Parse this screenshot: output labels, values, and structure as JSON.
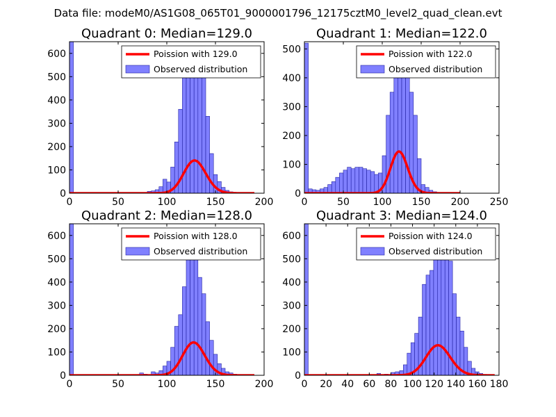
{
  "figure": {
    "title": "Data file: modeM0/AS1G08_065T01_9000001796_12175cztM0_level2_quad_clean.evt"
  },
  "colors": {
    "bar_fill": "#8080ff",
    "bar_edge": "#2020a0",
    "curve": "#ff0000",
    "axes": "#000000"
  },
  "chart_data": [
    {
      "type": "bar",
      "title": "Quadrant 0: Median=129.0",
      "xlabel": "",
      "ylabel": "",
      "xlim": [
        0,
        200
      ],
      "ylim": [
        0,
        650
      ],
      "xticks": [
        0,
        50,
        100,
        150,
        200
      ],
      "yticks": [
        0,
        100,
        200,
        300,
        400,
        500,
        600
      ],
      "legend": {
        "location": "top-right",
        "entries": [
          "Poission with 129.0",
          "Observed distribution"
        ]
      },
      "hist": {
        "bin_width": 4,
        "bins": [
          [
            0,
            650
          ],
          [
            76,
            3
          ],
          [
            80,
            8
          ],
          [
            84,
            10
          ],
          [
            88,
            15
          ],
          [
            92,
            28
          ],
          [
            96,
            60
          ],
          [
            100,
            48
          ],
          [
            104,
            112
          ],
          [
            108,
            220
          ],
          [
            112,
            360
          ],
          [
            116,
            520
          ],
          [
            120,
            500
          ],
          [
            124,
            580
          ],
          [
            128,
            580
          ],
          [
            132,
            540
          ],
          [
            136,
            530
          ],
          [
            140,
            330
          ],
          [
            144,
            170
          ],
          [
            148,
            80
          ],
          [
            152,
            50
          ],
          [
            156,
            25
          ],
          [
            160,
            12
          ],
          [
            164,
            6
          ],
          [
            168,
            3
          ]
        ]
      },
      "poisson": {
        "lambda": 129.0,
        "scale": 4000,
        "x_range": [
          0,
          190
        ]
      }
    },
    {
      "type": "bar",
      "title": "Quadrant 1: Median=122.0",
      "xlabel": "",
      "ylabel": "",
      "xlim": [
        0,
        250
      ],
      "ylim": [
        0,
        525
      ],
      "xticks": [
        0,
        50,
        100,
        150,
        200,
        250
      ],
      "yticks": [
        0,
        100,
        200,
        300,
        400,
        500
      ],
      "legend": {
        "location": "top-right",
        "entries": [
          "Poission with 122.0",
          "Observed distribution"
        ]
      },
      "hist": {
        "bin_width": 5,
        "bins": [
          [
            0,
            520
          ],
          [
            5,
            15
          ],
          [
            10,
            12
          ],
          [
            15,
            10
          ],
          [
            20,
            15
          ],
          [
            25,
            20
          ],
          [
            30,
            30
          ],
          [
            35,
            40
          ],
          [
            40,
            55
          ],
          [
            45,
            70
          ],
          [
            50,
            80
          ],
          [
            55,
            90
          ],
          [
            60,
            85
          ],
          [
            65,
            90
          ],
          [
            70,
            90
          ],
          [
            75,
            85
          ],
          [
            80,
            80
          ],
          [
            85,
            75
          ],
          [
            90,
            65
          ],
          [
            95,
            70
          ],
          [
            100,
            130
          ],
          [
            105,
            270
          ],
          [
            110,
            350
          ],
          [
            115,
            510
          ],
          [
            120,
            510
          ],
          [
            125,
            415
          ],
          [
            130,
            465
          ],
          [
            135,
            350
          ],
          [
            140,
            270
          ],
          [
            145,
            120
          ],
          [
            150,
            30
          ],
          [
            155,
            20
          ],
          [
            160,
            10
          ],
          [
            165,
            5
          ]
        ]
      },
      "poisson": {
        "lambda": 122.0,
        "scale": 4000,
        "x_range": [
          0,
          200
        ]
      }
    },
    {
      "type": "bar",
      "title": "Quadrant 2: Median=128.0",
      "xlabel": "",
      "ylabel": "",
      "xlim": [
        0,
        200
      ],
      "ylim": [
        0,
        650
      ],
      "xticks": [
        0,
        50,
        100,
        150,
        200
      ],
      "yticks": [
        0,
        100,
        200,
        300,
        400,
        500,
        600
      ],
      "legend": {
        "location": "top-right",
        "entries": [
          "Poission with 128.0",
          "Observed distribution"
        ]
      },
      "hist": {
        "bin_width": 4,
        "bins": [
          [
            0,
            650
          ],
          [
            72,
            10
          ],
          [
            76,
            5
          ],
          [
            84,
            15
          ],
          [
            88,
            10
          ],
          [
            92,
            20
          ],
          [
            96,
            40
          ],
          [
            100,
            60
          ],
          [
            104,
            120
          ],
          [
            108,
            210
          ],
          [
            112,
            260
          ],
          [
            116,
            380
          ],
          [
            120,
            510
          ],
          [
            124,
            580
          ],
          [
            128,
            520
          ],
          [
            132,
            420
          ],
          [
            136,
            350
          ],
          [
            140,
            230
          ],
          [
            144,
            150
          ],
          [
            148,
            90
          ],
          [
            152,
            50
          ],
          [
            156,
            30
          ],
          [
            160,
            15
          ],
          [
            164,
            10
          ],
          [
            168,
            5
          ]
        ]
      },
      "poisson": {
        "lambda": 128.0,
        "scale": 4000,
        "x_range": [
          0,
          190
        ]
      }
    },
    {
      "type": "bar",
      "title": "Quadrant 3: Median=124.0",
      "xlabel": "",
      "ylabel": "",
      "xlim": [
        0,
        180
      ],
      "ylim": [
        0,
        650
      ],
      "xticks": [
        0,
        20,
        40,
        60,
        80,
        100,
        120,
        140,
        160,
        180
      ],
      "yticks": [
        0,
        100,
        200,
        300,
        400,
        500,
        600
      ],
      "legend": {
        "location": "top-right",
        "entries": [
          "Poission with 124.0",
          "Observed distribution"
        ]
      },
      "hist": {
        "bin_width": 3.5,
        "bins": [
          [
            0,
            650
          ],
          [
            67,
            8
          ],
          [
            74,
            5
          ],
          [
            80,
            12
          ],
          [
            84,
            15
          ],
          [
            88,
            20
          ],
          [
            91.5,
            45
          ],
          [
            95,
            95
          ],
          [
            98.5,
            140
          ],
          [
            102,
            180
          ],
          [
            105.5,
            250
          ],
          [
            109,
            390
          ],
          [
            112.5,
            430
          ],
          [
            116,
            450
          ],
          [
            119.5,
            530
          ],
          [
            123,
            600
          ],
          [
            126.5,
            550
          ],
          [
            130,
            620
          ],
          [
            133.5,
            490
          ],
          [
            137,
            350
          ],
          [
            140.5,
            250
          ],
          [
            144,
            190
          ],
          [
            147.5,
            120
          ],
          [
            151,
            60
          ],
          [
            154.5,
            30
          ],
          [
            158,
            15
          ],
          [
            161.5,
            8
          ],
          [
            165,
            4
          ]
        ]
      },
      "poisson": {
        "lambda": 124.0,
        "scale": 3600,
        "x_range": [
          0,
          176
        ]
      }
    }
  ]
}
